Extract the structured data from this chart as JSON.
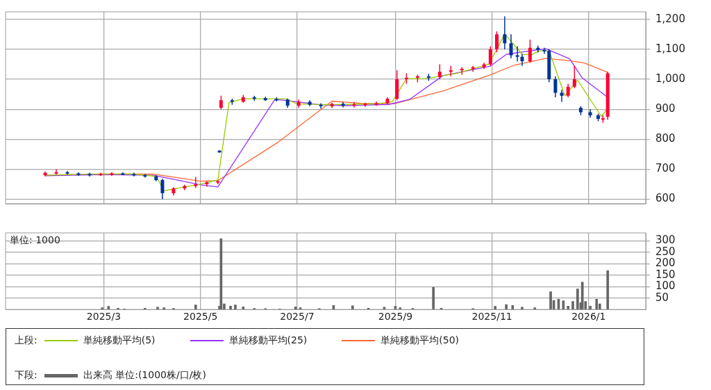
{
  "chart_data": [
    {
      "type": "candlestick",
      "legend": "bottom",
      "legend_title": "上段:",
      "grid": true,
      "tick_labels": "y",
      "xlim": [
        "2024-12-29",
        "2026-02-06"
      ],
      "xticks": [
        {
          "value": "2025-03-01",
          "label": null
        },
        {
          "value": "2025-05-01",
          "label": null
        },
        {
          "value": "2025-07-01",
          "label": null
        },
        {
          "value": "2025-09-01",
          "label": null
        },
        {
          "value": "2025-11-01",
          "label": null
        },
        {
          "value": "2026-01-01",
          "label": null
        }
      ],
      "ylim": [
        585,
        1225
      ],
      "yticks": [
        600,
        700,
        800,
        900,
        {
          "value": 1000,
          "label": "1,000"
        },
        {
          "value": 1100,
          "label": "1,100"
        },
        {
          "value": 1200,
          "label": "1,200"
        }
      ],
      "x": [
        "2025-01-23",
        "2025-01-30",
        "2025-02-06",
        "2025-02-13",
        "2025-02-20",
        "2025-02-27",
        "2025-03-06",
        "2025-03-13",
        "2025-03-20",
        "2025-03-27",
        "2025-04-03",
        "2025-04-07",
        "2025-04-14",
        "2025-04-21",
        "2025-04-28",
        "2025-05-05",
        "2025-05-12",
        "2025-05-13",
        "2025-05-14",
        "2025-05-21",
        "2025-05-28",
        "2025-06-04",
        "2025-06-11",
        "2025-06-18",
        "2025-06-25",
        "2025-07-02",
        "2025-07-09",
        "2025-07-16",
        "2025-07-23",
        "2025-07-30",
        "2025-08-06",
        "2025-08-13",
        "2025-08-20",
        "2025-08-27",
        "2025-09-02",
        "2025-09-08",
        "2025-09-15",
        "2025-09-22",
        "2025-09-29",
        "2025-10-06",
        "2025-10-13",
        "2025-10-20",
        "2025-10-27",
        "2025-10-31",
        "2025-11-04",
        "2025-11-09",
        "2025-11-13",
        "2025-11-17",
        "2025-11-20",
        "2025-11-25",
        "2025-11-30",
        "2025-12-04",
        "2025-12-07",
        "2025-12-11",
        "2025-12-15",
        "2025-12-19",
        "2025-12-23",
        "2025-12-27",
        "2026-01-02",
        "2026-01-07",
        "2026-01-10",
        "2026-01-13"
      ],
      "ohlc": [
        [
          680,
          692,
          676,
          688
        ],
        [
          688,
          700,
          682,
          690
        ],
        [
          690,
          694,
          682,
          686
        ],
        [
          686,
          690,
          678,
          684
        ],
        [
          684,
          688,
          676,
          682
        ],
        [
          682,
          688,
          678,
          684
        ],
        [
          684,
          690,
          678,
          686
        ],
        [
          686,
          690,
          680,
          684
        ],
        [
          684,
          688,
          676,
          680
        ],
        [
          680,
          684,
          672,
          676
        ],
        [
          676,
          680,
          660,
          664
        ],
        [
          664,
          668,
          600,
          620
        ],
        [
          620,
          640,
          612,
          636
        ],
        [
          636,
          648,
          630,
          644
        ],
        [
          644,
          674,
          638,
          650
        ],
        [
          650,
          660,
          642,
          656
        ],
        [
          656,
          664,
          650,
          660
        ],
        [
          762,
          763,
          755,
          756
        ],
        [
          905,
          945,
          900,
          930
        ],
        [
          930,
          935,
          915,
          925
        ],
        [
          925,
          948,
          922,
          940
        ],
        [
          940,
          945,
          928,
          935
        ],
        [
          937,
          942,
          928,
          930
        ],
        [
          934,
          940,
          926,
          932
        ],
        [
          932,
          936,
          905,
          912
        ],
        [
          912,
          932,
          905,
          925
        ],
        [
          925,
          930,
          910,
          915
        ],
        [
          915,
          920,
          902,
          910
        ],
        [
          910,
          922,
          904,
          918
        ],
        [
          918,
          924,
          906,
          912
        ],
        [
          912,
          924,
          906,
          916
        ],
        [
          916,
          922,
          908,
          918
        ],
        [
          918,
          926,
          912,
          920
        ],
        [
          920,
          940,
          916,
          935
        ],
        [
          935,
          1030,
          930,
          1000
        ],
        [
          1000,
          1020,
          985,
          1005
        ],
        [
          1005,
          1015,
          990,
          1010
        ],
        [
          1010,
          1018,
          995,
          1008
        ],
        [
          1008,
          1050,
          1000,
          1025
        ],
        [
          1025,
          1045,
          1010,
          1030
        ],
        [
          1030,
          1040,
          1015,
          1035
        ],
        [
          1035,
          1045,
          1025,
          1040
        ],
        [
          1040,
          1055,
          1035,
          1050
        ],
        [
          1050,
          1110,
          1045,
          1100
        ],
        [
          1100,
          1160,
          1090,
          1150
        ],
        [
          1150,
          1210,
          1100,
          1120
        ],
        [
          1120,
          1150,
          1070,
          1080
        ],
        [
          1080,
          1110,
          1060,
          1075
        ],
        [
          1075,
          1085,
          1045,
          1060
        ],
        [
          1060,
          1132,
          1055,
          1105
        ],
        [
          1105,
          1112,
          1090,
          1098
        ],
        [
          1098,
          1105,
          1085,
          1095
        ],
        [
          1095,
          1100,
          990,
          1000
        ],
        [
          1000,
          1010,
          940,
          955
        ],
        [
          955,
          965,
          925,
          945
        ],
        [
          945,
          985,
          940,
          975
        ],
        [
          975,
          1045,
          970,
          1000
        ],
        [
          905,
          910,
          880,
          890
        ],
        [
          890,
          900,
          872,
          880
        ],
        [
          880,
          885,
          860,
          868
        ],
        [
          868,
          880,
          855,
          870
        ],
        [
          875,
          1025,
          865,
          1020
        ]
      ],
      "colors": [
        "#ff0033",
        "#ff0033",
        "#003399",
        "#003399",
        "#003399",
        "#ff0033",
        "#ff0033",
        "#003399",
        "#003399",
        "#003399",
        "#003399",
        "#003399",
        "#ff0033",
        "#ff0033",
        "#ff0033",
        "#ff0033",
        "#ff0033",
        "#003399",
        "#ff0033",
        "#003399",
        "#ff0033",
        "#003399",
        "#003399",
        "#003399",
        "#003399",
        "#ff0033",
        "#003399",
        "#003399",
        "#ff0033",
        "#003399",
        "#ff0033",
        "#ff0033",
        "#ff0033",
        "#ff0033",
        "#ff0033",
        "#ff0033",
        "#ff0033",
        "#003399",
        "#ff0033",
        "#ff0033",
        "#ff0033",
        "#ff0033",
        "#ff0033",
        "#ff0033",
        "#ff0033",
        "#003399",
        "#003399",
        "#003399",
        "#003399",
        "#ff0033",
        "#003399",
        "#003399",
        "#003399",
        "#003399",
        "#003399",
        "#ff0033",
        "#ff0033",
        "#003399",
        "#003399",
        "#003399",
        "#ff0033",
        "#ff0033"
      ],
      "series": [
        {
          "type": "line",
          "name": "単純移動平均(5)",
          "color": "#99cc00",
          "x": [
            "2025-01-23",
            "2025-02-20",
            "2025-03-20",
            "2025-04-03",
            "2025-04-08",
            "2025-04-20",
            "2025-05-01",
            "2025-05-12",
            "2025-05-19",
            "2025-05-28",
            "2025-06-10",
            "2025-06-24",
            "2025-07-01",
            "2025-07-20",
            "2025-08-20",
            "2025-08-30",
            "2025-09-08",
            "2025-09-20",
            "2025-10-10",
            "2025-10-30",
            "2025-11-09",
            "2025-11-20",
            "2025-11-26",
            "2025-12-01",
            "2025-12-07",
            "2025-12-17",
            "2025-12-25",
            "2026-01-09",
            "2026-01-13"
          ],
          "values": [
            680,
            684,
            684,
            676,
            628,
            640,
            650,
            664,
            922,
            935,
            935,
            935,
            918,
            915,
            918,
            925,
            1002,
            1002,
            1020,
            1050,
            1151,
            1083,
            1082,
            1095,
            1095,
            945,
            997,
            876,
            903
          ]
        },
        {
          "type": "line",
          "name": "単純移動平均(25)",
          "color": "#9933ff",
          "x": [
            "2025-01-23",
            "2025-03-01",
            "2025-04-01",
            "2025-04-20",
            "2025-05-01",
            "2025-05-12",
            "2025-06-17",
            "2025-07-01",
            "2025-07-15",
            "2025-08-01",
            "2025-08-28",
            "2025-09-10",
            "2025-10-01",
            "2025-10-31",
            "2025-11-10",
            "2025-11-25",
            "2025-12-05",
            "2025-12-20",
            "2025-12-28",
            "2026-01-13"
          ],
          "values": [
            678,
            682,
            680,
            660,
            648,
            641,
            933,
            925,
            915,
            912,
            916,
            933,
            1012,
            1044,
            1083,
            1095,
            1102,
            1068,
            1004,
            940
          ]
        },
        {
          "type": "line",
          "name": "単純移動平均(50)",
          "color": "#ff6633",
          "x": [
            "2025-01-23",
            "2025-03-01",
            "2025-04-01",
            "2025-05-01",
            "2025-05-12",
            "2025-06-19",
            "2025-07-23",
            "2025-08-10",
            "2025-08-31",
            "2025-10-01",
            "2025-10-31",
            "2025-11-15",
            "2025-12-05",
            "2025-12-20",
            "2025-12-29",
            "2026-01-13"
          ],
          "values": [
            680,
            684,
            684,
            660,
            662,
            790,
            927,
            920,
            918,
            961,
            1015,
            1047,
            1070,
            1062,
            1055,
            1023
          ]
        }
      ]
    },
    {
      "type": "bar",
      "legend": "bottom",
      "legend_title": "下段:",
      "grid": true,
      "annotations": [
        "単位: 1000"
      ],
      "xlim": [
        "2024-12-29",
        "2026-02-06"
      ],
      "xticks": [
        {
          "value": "2025-03-01",
          "label": "2025/3"
        },
        {
          "value": "2025-05-01",
          "label": "2025/5"
        },
        {
          "value": "2025-07-01",
          "label": "2025/7"
        },
        {
          "value": "2025-09-01",
          "label": "2025/9"
        },
        {
          "value": "2025-11-01",
          "label": "2025/11"
        },
        {
          "value": "2026-01-01",
          "label": "2026/1"
        }
      ],
      "ylim": [
        0,
        335
      ],
      "yticks": [
        50,
        100,
        150,
        200,
        250,
        300
      ],
      "series": [
        {
          "type": "bar",
          "name": "出来高 単位:(1000株/口/枚)",
          "color": "#666666",
          "x": [
            "2025-02-28",
            "2025-03-04",
            "2025-03-10",
            "2025-03-14",
            "2025-03-27",
            "2025-04-04",
            "2025-04-08",
            "2025-04-14",
            "2025-04-28",
            "2025-05-13",
            "2025-05-14",
            "2025-05-16",
            "2025-05-20",
            "2025-05-23",
            "2025-05-28",
            "2025-06-04",
            "2025-06-11",
            "2025-06-20",
            "2025-06-30",
            "2025-07-03",
            "2025-07-15",
            "2025-07-24",
            "2025-08-05",
            "2025-08-15",
            "2025-08-25",
            "2025-09-01",
            "2025-09-04",
            "2025-09-12",
            "2025-09-25",
            "2025-09-30",
            "2025-10-20",
            "2025-11-03",
            "2025-11-10",
            "2025-11-14",
            "2025-11-20",
            "2025-11-28",
            "2025-12-08",
            "2025-12-10",
            "2025-12-13",
            "2025-12-16",
            "2025-12-19",
            "2025-12-22",
            "2025-12-25",
            "2025-12-27",
            "2025-12-28",
            "2025-12-30",
            "2026-01-02",
            "2026-01-06",
            "2026-01-08",
            "2026-01-13"
          ],
          "values": [
            8,
            14,
            6,
            3,
            6,
            10,
            8,
            5,
            20,
            15,
            310,
            25,
            15,
            20,
            12,
            5,
            4,
            3,
            12,
            8,
            4,
            18,
            16,
            6,
            10,
            14,
            8,
            5,
            97,
            6,
            4,
            14,
            22,
            18,
            10,
            8,
            78,
            40,
            45,
            38,
            15,
            35,
            90,
            30,
            120,
            35,
            15,
            45,
            25,
            170
          ]
        }
      ]
    }
  ]
}
